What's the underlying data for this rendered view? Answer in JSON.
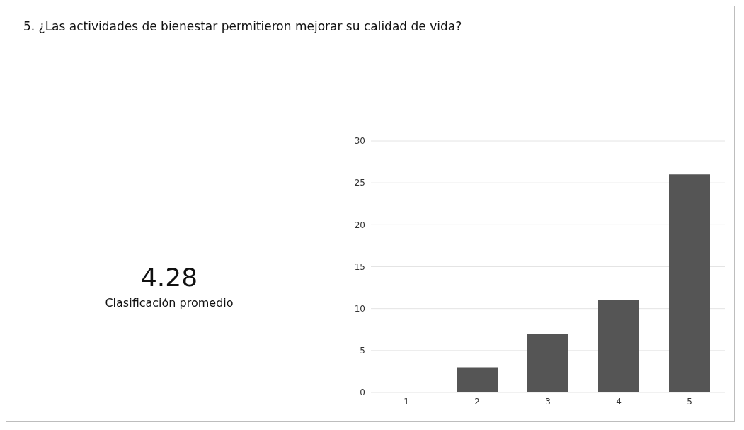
{
  "chart_data": {
    "type": "bar",
    "title": "5.  ¿Las actividades de bienestar permitieron mejorar su calidad de vida?",
    "categories": [
      "1",
      "2",
      "3",
      "4",
      "5"
    ],
    "values": [
      0,
      3,
      7,
      11,
      26
    ],
    "color": "#555555",
    "ylim": [
      0,
      30
    ],
    "yticks": [
      0,
      5,
      10,
      15,
      20,
      25,
      30
    ],
    "grid": "y",
    "annotations": [
      "4.28",
      "Clasificación promedio"
    ]
  }
}
